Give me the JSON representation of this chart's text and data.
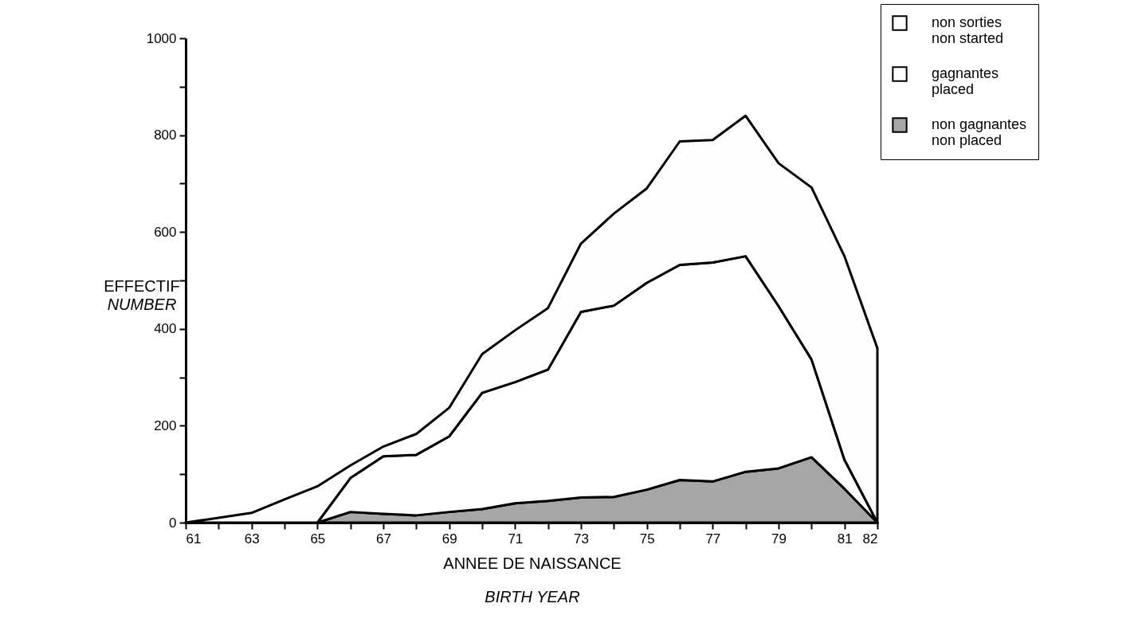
{
  "chart_data": {
    "type": "area",
    "stacked": true,
    "xlabel": "ANNEE DE NAISSANCE\nBIRTH YEAR",
    "ylabel": "EFFECTIF\nNUMBER",
    "x": [
      61,
      63,
      64,
      65,
      66,
      67,
      68,
      69,
      70,
      71,
      72,
      73,
      74,
      75,
      76,
      77,
      78,
      79,
      80,
      81,
      82
    ],
    "xlim": [
      61,
      82
    ],
    "ylim": [
      0,
      1000
    ],
    "xticks": [
      61,
      {
        "value": 62,
        "label": null
      },
      63,
      {
        "value": 64,
        "label": null
      },
      65,
      {
        "value": 66,
        "label": null
      },
      67,
      {
        "value": 68,
        "label": null
      },
      69,
      {
        "value": 70,
        "label": null
      },
      71,
      {
        "value": 72,
        "label": null
      },
      73,
      {
        "value": 74,
        "label": null
      },
      75,
      {
        "value": 76,
        "label": null
      },
      77,
      {
        "value": 78,
        "label": null
      },
      79,
      {
        "value": 80,
        "label": null
      },
      81,
      82
    ],
    "yticks": [
      0,
      {
        "value": 100,
        "label": null
      },
      200,
      {
        "value": 300,
        "label": null
      },
      400,
      {
        "value": 500,
        "label": null
      },
      600,
      {
        "value": 700,
        "label": null
      },
      800,
      {
        "value": 900,
        "label": null
      },
      1000
    ],
    "legend": "top right",
    "series": [
      {
        "name": "non gagnantes\nnon placed",
        "color": "#a6a6a6",
        "values": [
          0,
          0,
          0,
          0,
          22,
          18,
          15,
          22,
          28,
          40,
          45,
          52,
          53,
          68,
          88,
          85,
          105,
          112,
          135,
          70,
          0
        ]
      },
      {
        "name": "gagnantes\nplaced",
        "color": "#ffffff",
        "values": [
          0,
          0,
          0,
          0,
          70,
          119,
          125,
          156,
          240,
          250,
          271,
          383,
          395,
          427,
          444,
          452,
          445,
          335,
          202,
          60,
          0
        ]
      },
      {
        "name": "non sorties\nnon started",
        "color": "#fefefe",
        "values": [
          0,
          20,
          48,
          75,
          26,
          20,
          43,
          59,
          80,
          107,
          127,
          141,
          190,
          195,
          255,
          253,
          290,
          295,
          355,
          420,
          360
        ]
      }
    ]
  }
}
